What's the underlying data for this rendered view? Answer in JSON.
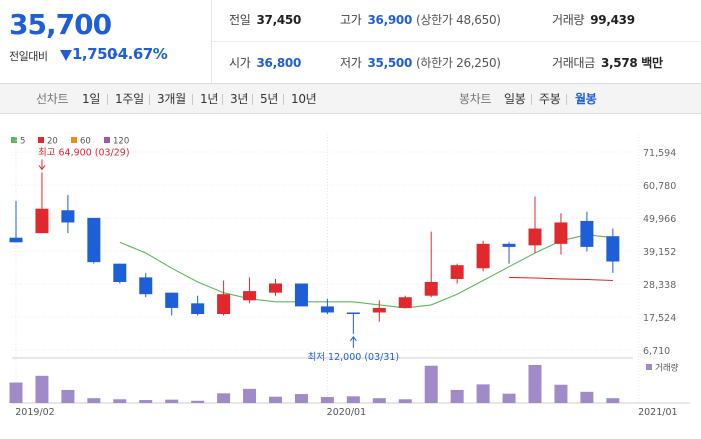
{
  "quote": {
    "price": "35,700",
    "change_label": "전일대비",
    "change": "1,750",
    "change_rate": "-4.67%",
    "prev_close_label": "전일",
    "prev_close": "37,450",
    "high_label": "고가",
    "high": "36,900",
    "upper_limit": "(상한가 48,650)",
    "volume_label": "거래량",
    "volume": "99,439",
    "open_label": "시가",
    "open": "36,800",
    "low_label": "저가",
    "low": "35,500",
    "lower_limit": "(하한가 26,250)",
    "amount_label": "거래대금",
    "amount": "3,578 백만",
    "color_up": "#e0282d",
    "color_down": "#1e5fd8"
  },
  "toolbar": {
    "line_chart_label": "선차트",
    "periods": [
      "1일",
      "1주일",
      "3개월",
      "1년",
      "3년",
      "5년",
      "10년"
    ],
    "candle_chart_label": "봉차트",
    "candle_types": [
      "일봉",
      "주봉",
      "월봉"
    ],
    "active_candle": "월봉"
  },
  "chart_data": {
    "type": "candlestick",
    "legend": [
      {
        "name": "5",
        "color": "#5cb85c"
      },
      {
        "name": "20",
        "color": "#e0282d"
      },
      {
        "name": "60",
        "color": "#f08c1e"
      },
      {
        "name": "120",
        "color": "#9b59b6"
      }
    ],
    "y_ticks": [
      "71,594",
      "60,780",
      "49,966",
      "39,152",
      "28,338",
      "17,524",
      "6,710"
    ],
    "y_tick_values": [
      71594,
      60780,
      49966,
      39152,
      28338,
      17524,
      6710
    ],
    "x_labels": [
      {
        "label": "2019/02",
        "index": 0
      },
      {
        "label": "2020/01",
        "index": 12
      },
      {
        "label": "2021/01",
        "index": 24
      }
    ],
    "max_annotation": "최고 64,900 (03/29)",
    "min_annotation": "최저 12,000 (03/31)",
    "max_index": 1,
    "min_index": 13,
    "volume_label": "거래량",
    "candles": [
      {
        "o": 43500,
        "h": 55500,
        "l": 42000,
        "c": 42000
      },
      {
        "o": 45000,
        "h": 64900,
        "l": 45000,
        "c": 53000
      },
      {
        "o": 52500,
        "h": 57500,
        "l": 45000,
        "c": 48500
      },
      {
        "o": 50000,
        "h": 50000,
        "l": 35000,
        "c": 35500
      },
      {
        "o": 35000,
        "h": 35000,
        "l": 28500,
        "c": 29000
      },
      {
        "o": 30500,
        "h": 32000,
        "l": 24000,
        "c": 25000
      },
      {
        "o": 25500,
        "h": 25500,
        "l": 18000,
        "c": 20500
      },
      {
        "o": 22000,
        "h": 24500,
        "l": 18000,
        "c": 18500
      },
      {
        "o": 18500,
        "h": 29500,
        "l": 18000,
        "c": 25000
      },
      {
        "o": 23000,
        "h": 30500,
        "l": 22000,
        "c": 26000
      },
      {
        "o": 25500,
        "h": 30000,
        "l": 24500,
        "c": 28500
      },
      {
        "o": 28500,
        "h": 28500,
        "l": 21000,
        "c": 21000
      },
      {
        "o": 21000,
        "h": 23500,
        "l": 18500,
        "c": 19000
      },
      {
        "o": 19000,
        "h": 19000,
        "l": 12000,
        "c": 18800
      },
      {
        "o": 19000,
        "h": 23000,
        "l": 16000,
        "c": 20500
      },
      {
        "o": 20500,
        "h": 24500,
        "l": 20500,
        "c": 24000
      },
      {
        "o": 24500,
        "h": 45500,
        "l": 24000,
        "c": 29000
      },
      {
        "o": 30000,
        "h": 35000,
        "l": 28500,
        "c": 34500
      },
      {
        "o": 33500,
        "h": 42500,
        "l": 32500,
        "c": 41500
      },
      {
        "o": 41500,
        "h": 42000,
        "l": 35000,
        "c": 40500
      },
      {
        "o": 41000,
        "h": 57000,
        "l": 38500,
        "c": 46500
      },
      {
        "o": 41500,
        "h": 51500,
        "l": 38000,
        "c": 48500
      },
      {
        "o": 49000,
        "h": 52000,
        "l": 39000,
        "c": 40500
      },
      {
        "o": 44000,
        "h": 46500,
        "l": 32000,
        "c": 35700
      }
    ],
    "ma5": [
      null,
      null,
      null,
      null,
      42000,
      38500,
      33500,
      29000,
      25500,
      23500,
      22500,
      22500,
      22500,
      22500,
      21500,
      20500,
      21500,
      25000,
      29500,
      34000,
      38500,
      42500,
      44500,
      43500
    ],
    "ma20": [
      null,
      null,
      null,
      null,
      null,
      null,
      null,
      null,
      null,
      null,
      null,
      null,
      null,
      null,
      null,
      null,
      null,
      null,
      null,
      30500,
      30300,
      30000,
      29800,
      29500
    ],
    "volumes": [
      5.5,
      7.3,
      3.5,
      1.3,
      1.0,
      0.8,
      0.9,
      0.6,
      2.6,
      3.8,
      1.7,
      2.4,
      1.6,
      1.8,
      1.3,
      1.0,
      10.0,
      3.5,
      5.0,
      2.5,
      10.2,
      4.9,
      3.0,
      1.3
    ]
  }
}
